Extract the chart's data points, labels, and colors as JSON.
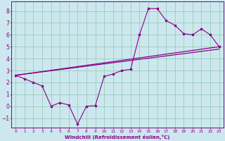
{
  "title": "",
  "xlabel": "Windchill (Refroidissement éolien,°C)",
  "ylabel": "",
  "bg_color": "#cce8ee",
  "grid_color": "#99ccbb",
  "line_color": "#880088",
  "xlim": [
    -0.5,
    23.5
  ],
  "ylim": [
    -1.8,
    8.8
  ],
  "xticks": [
    0,
    1,
    2,
    3,
    4,
    5,
    6,
    7,
    8,
    9,
    10,
    11,
    12,
    13,
    14,
    15,
    16,
    17,
    18,
    19,
    20,
    21,
    22,
    23
  ],
  "yticks": [
    -1,
    0,
    1,
    2,
    3,
    4,
    5,
    6,
    7,
    8
  ],
  "line1_x": [
    0,
    1,
    2,
    3,
    4,
    5,
    6,
    7,
    8,
    9,
    10,
    11,
    12,
    13,
    14,
    15,
    16,
    17,
    18,
    19,
    20,
    21,
    22,
    23
  ],
  "line1_y": [
    2.6,
    2.3,
    2.0,
    1.7,
    0.0,
    0.3,
    0.1,
    -1.5,
    0.0,
    0.05,
    2.5,
    2.7,
    3.0,
    3.1,
    6.0,
    8.2,
    8.2,
    7.2,
    6.8,
    6.1,
    6.0,
    6.5,
    6.0,
    5.0
  ],
  "line2_x": [
    0,
    23
  ],
  "line2_y": [
    2.6,
    5.0
  ],
  "line3_x": [
    0,
    23
  ],
  "line3_y": [
    2.6,
    4.8
  ]
}
